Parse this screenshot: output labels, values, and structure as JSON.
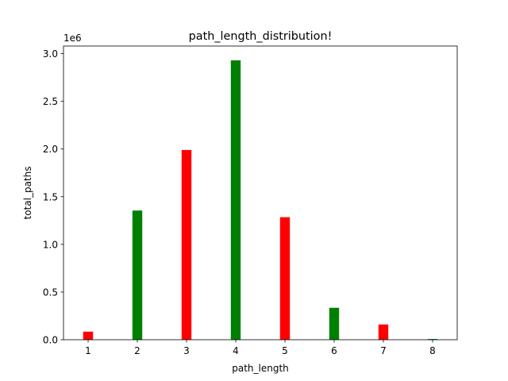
{
  "chart_data": {
    "type": "bar",
    "title": "path_length_distribution!",
    "xlabel": "path_length",
    "ylabel": "total_paths",
    "y_offset_label": "1e6",
    "y_scale_factor": 1000000,
    "categories": [
      1,
      2,
      3,
      4,
      5,
      6,
      7,
      8
    ],
    "values": [
      85000,
      1355000,
      1990000,
      2930000,
      1285000,
      335000,
      160000,
      8000
    ],
    "bar_colors": [
      "#ff0000",
      "#008000",
      "#ff0000",
      "#008000",
      "#ff0000",
      "#008000",
      "#ff0000",
      "#008000"
    ],
    "xlim": [
      0.5,
      8.5
    ],
    "ylim": [
      0,
      3080000
    ],
    "y_ticks": [
      0,
      500000,
      1000000,
      1500000,
      2000000,
      2500000,
      3000000
    ],
    "y_tick_labels": [
      "0.0",
      "0.5",
      "1.0",
      "1.5",
      "2.0",
      "2.5",
      "3.0"
    ],
    "x_tick_labels": [
      "1",
      "2",
      "3",
      "4",
      "5",
      "6",
      "7",
      "8"
    ],
    "grid": false,
    "legend": "none"
  }
}
